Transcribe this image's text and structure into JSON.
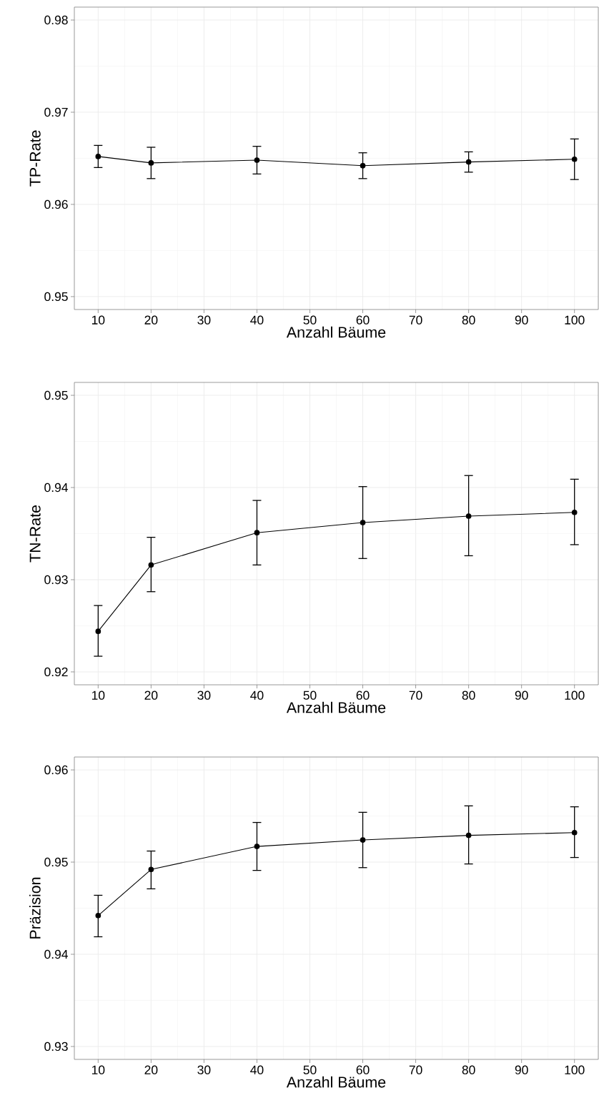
{
  "chart_data": [
    {
      "type": "line",
      "xlabel": "Anzahl Bäume",
      "ylabel": "TP-Rate",
      "color": "#000000",
      "marker": "circle",
      "grid": true,
      "x": [
        10,
        20,
        40,
        60,
        80,
        100
      ],
      "values": [
        0.9652,
        0.9645,
        0.9648,
        0.9642,
        0.9646,
        0.9649
      ],
      "errors": [
        [
          0.964,
          0.9664
        ],
        [
          0.9628,
          0.9662
        ],
        [
          0.9633,
          0.9663
        ],
        [
          0.9628,
          0.9656
        ],
        [
          0.9635,
          0.9657
        ],
        [
          0.9627,
          0.9671
        ]
      ],
      "xlim": [
        5.5,
        104.5
      ],
      "ylim": [
        0.9486,
        0.9814
      ],
      "xticks": [
        10,
        20,
        30,
        40,
        50,
        60,
        70,
        80,
        90,
        100
      ],
      "yticks": [
        0.95,
        0.96,
        0.97,
        0.98
      ]
    },
    {
      "type": "line",
      "xlabel": "Anzahl Bäume",
      "ylabel": "TN-Rate",
      "color": "#000000",
      "marker": "circle",
      "grid": true,
      "x": [
        10,
        20,
        40,
        60,
        80,
        100
      ],
      "values": [
        0.9244,
        0.9316,
        0.9351,
        0.9362,
        0.9369,
        0.9373
      ],
      "errors": [
        [
          0.9217,
          0.9272
        ],
        [
          0.9287,
          0.9346
        ],
        [
          0.9316,
          0.9386
        ],
        [
          0.9323,
          0.9401
        ],
        [
          0.9326,
          0.9413
        ],
        [
          0.9338,
          0.9409
        ]
      ],
      "xlim": [
        5.5,
        104.5
      ],
      "ylim": [
        0.9186,
        0.9514
      ],
      "xticks": [
        10,
        20,
        30,
        40,
        50,
        60,
        70,
        80,
        90,
        100
      ],
      "yticks": [
        0.92,
        0.93,
        0.94,
        0.95
      ]
    },
    {
      "type": "line",
      "xlabel": "Anzahl Bäume",
      "ylabel": "Präzision",
      "color": "#000000",
      "marker": "circle",
      "grid": true,
      "x": [
        10,
        20,
        40,
        60,
        80,
        100
      ],
      "values": [
        0.9442,
        0.9492,
        0.9517,
        0.9524,
        0.9529,
        0.9532
      ],
      "errors": [
        [
          0.9419,
          0.9464
        ],
        [
          0.9471,
          0.9512
        ],
        [
          0.9491,
          0.9543
        ],
        [
          0.9494,
          0.9554
        ],
        [
          0.9498,
          0.9561
        ],
        [
          0.9505,
          0.956
        ]
      ],
      "xlim": [
        5.5,
        104.5
      ],
      "ylim": [
        0.9286,
        0.9614
      ],
      "xticks": [
        10,
        20,
        30,
        40,
        50,
        60,
        70,
        80,
        90,
        100
      ],
      "yticks": [
        0.93,
        0.94,
        0.95,
        0.96
      ]
    }
  ]
}
